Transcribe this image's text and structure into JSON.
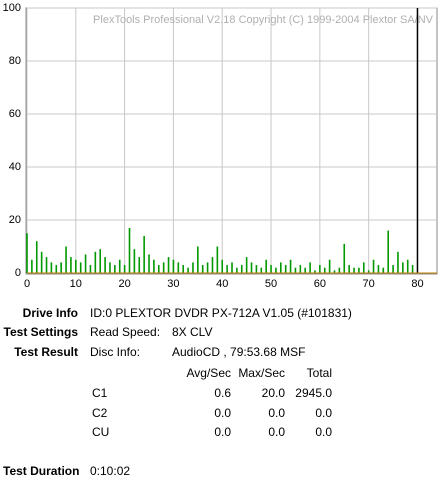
{
  "chart_data": {
    "type": "bar",
    "watermark": "PlexTools Professional V2.18 Copyright (C) 1999-2004 Plextor SA/NV",
    "x": [
      0,
      1,
      2,
      3,
      4,
      5,
      6,
      7,
      8,
      9,
      10,
      11,
      12,
      13,
      14,
      15,
      16,
      17,
      18,
      19,
      20,
      21,
      22,
      23,
      24,
      25,
      26,
      27,
      28,
      29,
      30,
      31,
      32,
      33,
      34,
      35,
      36,
      37,
      38,
      39,
      40,
      41,
      42,
      43,
      44,
      45,
      46,
      47,
      48,
      49,
      50,
      51,
      52,
      53,
      54,
      55,
      56,
      57,
      58,
      59,
      60,
      61,
      62,
      63,
      64,
      65,
      66,
      67,
      68,
      69,
      70,
      71,
      72,
      73,
      74,
      75,
      76,
      77,
      78,
      79
    ],
    "values": [
      15,
      5,
      12,
      8,
      6,
      4,
      3,
      4,
      10,
      6,
      5,
      4,
      7,
      3,
      8,
      9,
      6,
      4,
      3,
      5,
      3,
      17,
      9,
      6,
      14,
      7,
      5,
      3,
      4,
      6,
      5,
      4,
      3,
      2,
      4,
      10,
      3,
      4,
      6,
      10,
      5,
      3,
      4,
      2,
      3,
      6,
      4,
      3,
      2,
      5,
      3,
      2,
      4,
      3,
      5,
      2,
      3,
      2,
      4,
      1,
      3,
      2,
      5,
      1,
      2,
      11,
      3,
      2,
      2,
      4,
      1,
      5,
      3,
      2,
      16,
      3,
      8,
      4,
      5,
      3
    ],
    "color": "#009900",
    "end_marker": 80,
    "xlim": [
      0,
      84
    ],
    "ylim": [
      0,
      100
    ],
    "xticks": [
      0,
      10,
      20,
      30,
      40,
      50,
      60,
      70,
      80
    ],
    "yticks": [
      0,
      20,
      40,
      60,
      80,
      100
    ],
    "grid": true
  },
  "info": {
    "drive_label": "Drive Info",
    "drive_value": "ID:0 PLEXTOR DVDR PX-712A V1.05 (#101831)",
    "settings_label": "Test Settings",
    "speed_label": "Read Speed:",
    "speed_value": "8X CLV",
    "result_label": "Test Result",
    "disc_label": "Disc Info:",
    "disc_value": "AudioCD , 79:53.68 MSF",
    "table": {
      "header": [
        "Avg/Sec",
        "Max/Sec",
        "Total"
      ],
      "rows": [
        [
          "C1",
          "0.6",
          "20.0",
          "2945.0"
        ],
        [
          "C2",
          "0.0",
          "0.0",
          "0.0"
        ],
        [
          "CU",
          "0.0",
          "0.0",
          "0.0"
        ]
      ]
    },
    "duration_label": "Test Duration",
    "duration_value": "0:10:02"
  }
}
